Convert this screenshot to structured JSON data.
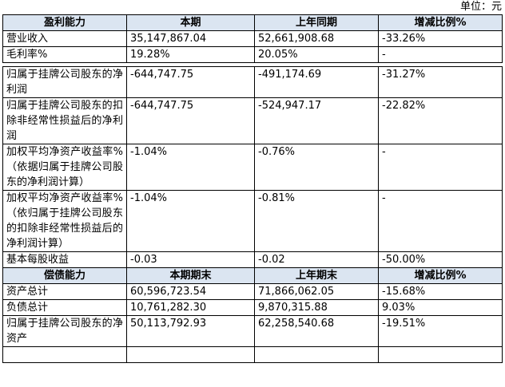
{
  "unit": "单位：元",
  "profit": {
    "header": [
      "盈利能力",
      "本期",
      "上年同期",
      "增减比例%"
    ],
    "rows": [
      [
        "营业收入",
        "35,147,867.04",
        "52,661,908.68",
        "-33.26%"
      ],
      [
        "毛利率%",
        "19.28%",
        "20.05%",
        "-"
      ],
      [
        "归属于挂牌公司股东的净利润",
        "-644,747.75",
        "-491,174.69",
        "-31.27%"
      ],
      [
        "归属于挂牌公司股东的扣除非经常性损益后的净利润",
        "-644,747.75",
        "-524,947.17",
        "-22.82%"
      ],
      [
        "加权平均净资产收益率%（依据归属于挂牌公司股东的净利润计算）",
        "-1.04%",
        "-0.76%",
        "-"
      ],
      [
        "加权平均净资产收益率%（依归属于挂牌公司股东的扣除非经常性损益后的净利润计算）",
        "-1.04%",
        "-0.81%",
        "-"
      ],
      [
        "基本每股收益",
        "-0.03",
        "-0.02",
        "-50.00%"
      ]
    ]
  },
  "solvency": {
    "header": [
      "偿债能力",
      "本期期末",
      "上年期末",
      "增减比例%"
    ],
    "rows": [
      [
        "资产总计",
        "60,596,723.54",
        "71,866,062.05",
        "-15.68%"
      ],
      [
        "负债总计",
        "10,761,282.30",
        "9,870,315.88",
        "9.03%"
      ],
      [
        "归属于挂牌公司股东的净资产",
        "50,113,792.93",
        "62,258,540.68",
        "-19.51%"
      ]
    ]
  }
}
